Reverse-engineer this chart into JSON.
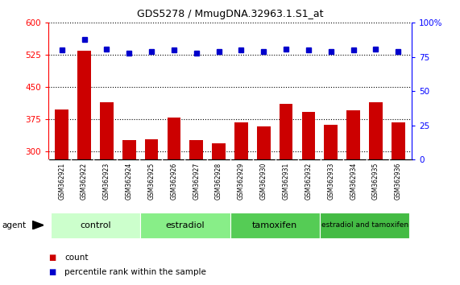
{
  "title": "GDS5278 / MmugDNA.32963.1.S1_at",
  "samples": [
    "GSM362921",
    "GSM362922",
    "GSM362923",
    "GSM362924",
    "GSM362925",
    "GSM362926",
    "GSM362927",
    "GSM362928",
    "GSM362929",
    "GSM362930",
    "GSM362931",
    "GSM362932",
    "GSM362933",
    "GSM362934",
    "GSM362935",
    "GSM362936"
  ],
  "counts": [
    398,
    535,
    415,
    325,
    328,
    378,
    325,
    318,
    368,
    358,
    410,
    392,
    362,
    395,
    415,
    368
  ],
  "percentile_ranks": [
    80,
    88,
    81,
    78,
    79,
    80,
    78,
    79,
    80,
    79,
    81,
    80,
    79,
    80,
    81,
    79
  ],
  "bar_color": "#cc0000",
  "dot_color": "#0000cc",
  "ylim_left": [
    280,
    600
  ],
  "ylim_right": [
    0,
    100
  ],
  "yticks_left": [
    300,
    375,
    450,
    525,
    600
  ],
  "yticks_right": [
    0,
    25,
    50,
    75,
    100
  ],
  "groups": [
    {
      "label": "control",
      "start": 0,
      "end": 4,
      "color": "#ccffcc"
    },
    {
      "label": "estradiol",
      "start": 4,
      "end": 8,
      "color": "#88ee88"
    },
    {
      "label": "tamoxifen",
      "start": 8,
      "end": 12,
      "color": "#55cc55"
    },
    {
      "label": "estradiol and tamoxifen",
      "start": 12,
      "end": 16,
      "color": "#44bb44"
    }
  ],
  "agent_label": "agent",
  "legend_count_label": "count",
  "legend_pct_label": "percentile rank within the sample",
  "background_color": "#ffffff",
  "tick_area_color": "#cccccc",
  "bar_bottom": 280
}
